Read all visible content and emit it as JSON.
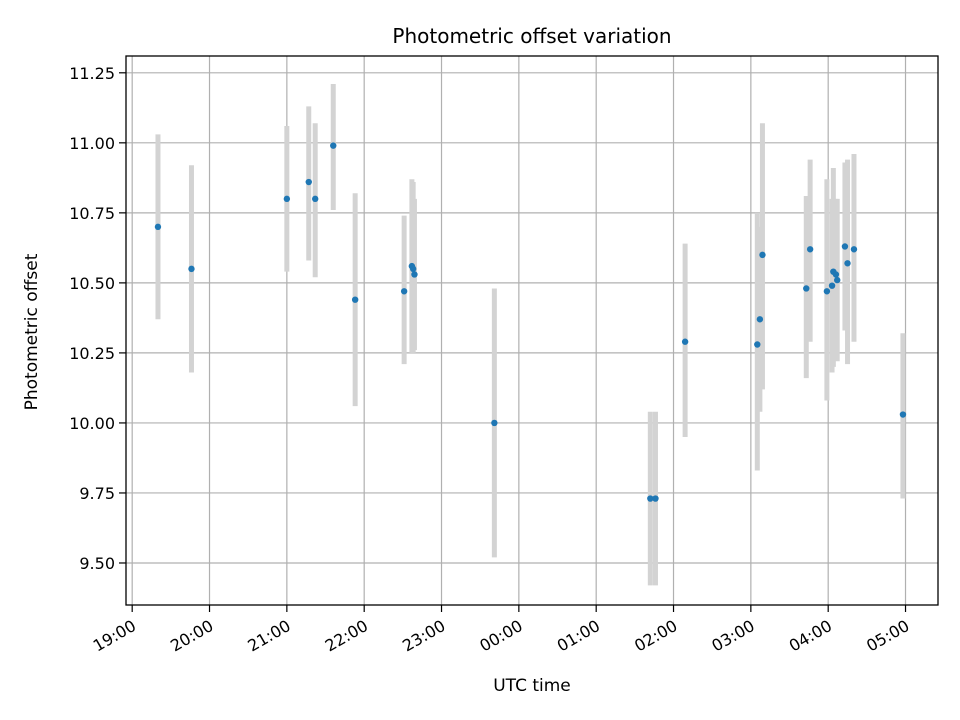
{
  "chart_data": {
    "type": "scatter",
    "title": "Photometric offset variation",
    "xlabel": "UTC time",
    "ylabel": "Photometric offset",
    "grid": true,
    "ylim": [
      9.35,
      11.31
    ],
    "xlim_hours": [
      18.92,
      29.42
    ],
    "x_ticks": [
      {
        "hour": 19,
        "label": "19:00"
      },
      {
        "hour": 20,
        "label": "20:00"
      },
      {
        "hour": 21,
        "label": "21:00"
      },
      {
        "hour": 22,
        "label": "22:00"
      },
      {
        "hour": 23,
        "label": "23:00"
      },
      {
        "hour": 24,
        "label": "00:00"
      },
      {
        "hour": 25,
        "label": "01:00"
      },
      {
        "hour": 26,
        "label": "02:00"
      },
      {
        "hour": 27,
        "label": "03:00"
      },
      {
        "hour": 28,
        "label": "04:00"
      },
      {
        "hour": 29,
        "label": "05:00"
      }
    ],
    "y_ticks": [
      {
        "value": 9.5,
        "label": "9.50"
      },
      {
        "value": 9.75,
        "label": "9.75"
      },
      {
        "value": 10.0,
        "label": "10.00"
      },
      {
        "value": 10.25,
        "label": "10.25"
      },
      {
        "value": 10.5,
        "label": "10.50"
      },
      {
        "value": 10.75,
        "label": "10.75"
      },
      {
        "value": 11.0,
        "label": "11.00"
      },
      {
        "value": 11.25,
        "label": "11.25"
      }
    ],
    "colors": {
      "marker": "#1f77b4",
      "errorbar": "#d3d3d3",
      "grid": "#b0b0b0"
    },
    "points": [
      {
        "time": "19:20",
        "y": 10.7,
        "lo": 10.37,
        "hi": 11.03
      },
      {
        "time": "19:46",
        "y": 10.55,
        "lo": 10.18,
        "hi": 10.92
      },
      {
        "time": "21:00",
        "y": 10.8,
        "lo": 10.54,
        "hi": 11.06
      },
      {
        "time": "21:17",
        "y": 10.86,
        "lo": 10.58,
        "hi": 11.13
      },
      {
        "time": "21:22",
        "y": 10.8,
        "lo": 10.52,
        "hi": 11.07
      },
      {
        "time": "21:36",
        "y": 10.99,
        "lo": 10.76,
        "hi": 11.21
      },
      {
        "time": "21:53",
        "y": 10.44,
        "lo": 10.06,
        "hi": 10.82
      },
      {
        "time": "22:31",
        "y": 10.47,
        "lo": 10.21,
        "hi": 10.74
      },
      {
        "time": "22:37",
        "y": 10.56,
        "lo": 10.25,
        "hi": 10.87
      },
      {
        "time": "22:38",
        "y": 10.55,
        "lo": 10.25,
        "hi": 10.86
      },
      {
        "time": "22:39",
        "y": 10.53,
        "lo": 10.26,
        "hi": 10.8
      },
      {
        "time": "23:41",
        "y": 10.0,
        "lo": 9.52,
        "hi": 10.48
      },
      {
        "time": "01:42",
        "y": 9.73,
        "lo": 9.42,
        "hi": 10.04
      },
      {
        "time": "01:46",
        "y": 9.73,
        "lo": 9.42,
        "hi": 10.04
      },
      {
        "time": "02:09",
        "y": 10.29,
        "lo": 9.95,
        "hi": 10.64
      },
      {
        "time": "03:05",
        "y": 10.28,
        "lo": 9.83,
        "hi": 10.75
      },
      {
        "time": "03:07",
        "y": 10.37,
        "lo": 10.04,
        "hi": 10.7
      },
      {
        "time": "03:09",
        "y": 10.6,
        "lo": 10.12,
        "hi": 11.07
      },
      {
        "time": "03:43",
        "y": 10.48,
        "lo": 10.16,
        "hi": 10.81
      },
      {
        "time": "03:46",
        "y": 10.62,
        "lo": 10.29,
        "hi": 10.94
      },
      {
        "time": "03:59",
        "y": 10.47,
        "lo": 10.08,
        "hi": 10.87
      },
      {
        "time": "04:03",
        "y": 10.49,
        "lo": 10.18,
        "hi": 10.8
      },
      {
        "time": "04:04",
        "y": 10.54,
        "lo": 10.2,
        "hi": 10.91
      },
      {
        "time": "04:06",
        "y": 10.53,
        "lo": 10.26,
        "hi": 10.8
      },
      {
        "time": "04:07",
        "y": 10.51,
        "lo": 10.22,
        "hi": 10.8
      },
      {
        "time": "04:13",
        "y": 10.63,
        "lo": 10.33,
        "hi": 10.93
      },
      {
        "time": "04:15",
        "y": 10.57,
        "lo": 10.21,
        "hi": 10.94
      },
      {
        "time": "04:20",
        "y": 10.62,
        "lo": 10.29,
        "hi": 10.96
      },
      {
        "time": "04:58",
        "y": 10.03,
        "lo": 9.73,
        "hi": 10.32
      }
    ]
  }
}
